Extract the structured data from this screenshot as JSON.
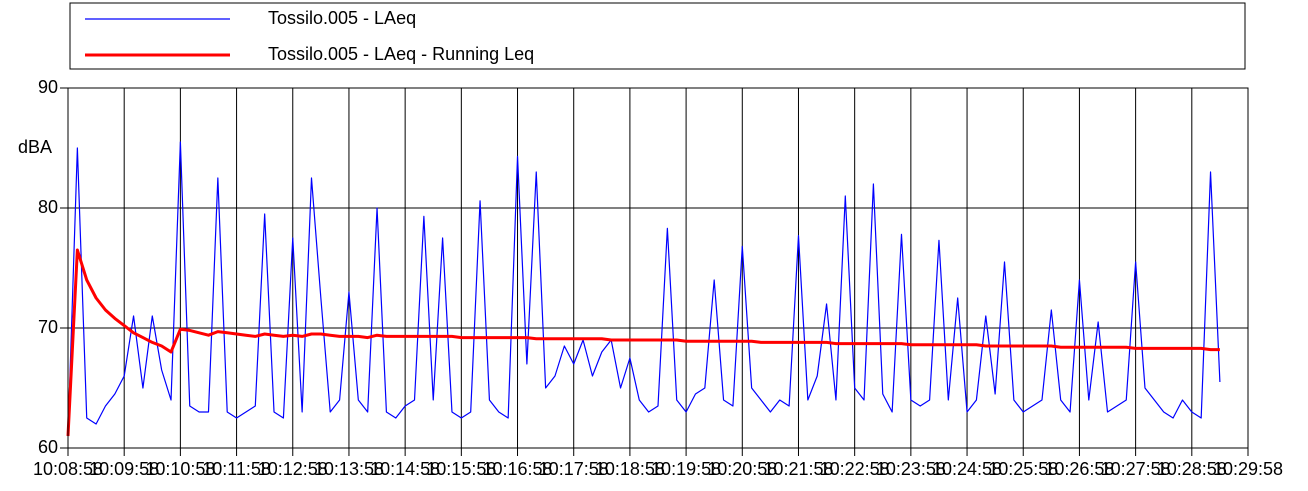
{
  "chart_data": {
    "type": "line",
    "y_label": "dBA",
    "x": [
      "10:08:58",
      "10:09:08",
      "10:09:18",
      "10:09:28",
      "10:09:38",
      "10:09:48",
      "10:09:58",
      "10:10:08",
      "10:10:18",
      "10:10:28",
      "10:10:38",
      "10:10:48",
      "10:10:58",
      "10:11:08",
      "10:11:18",
      "10:11:28",
      "10:11:38",
      "10:11:48",
      "10:11:58",
      "10:12:08",
      "10:12:18",
      "10:12:28",
      "10:12:38",
      "10:12:48",
      "10:12:58",
      "10:13:08",
      "10:13:18",
      "10:13:28",
      "10:13:38",
      "10:13:48",
      "10:13:58",
      "10:14:08",
      "10:14:18",
      "10:14:28",
      "10:14:38",
      "10:14:48",
      "10:14:58",
      "10:15:08",
      "10:15:18",
      "10:15:28",
      "10:15:38",
      "10:15:48",
      "10:15:58",
      "10:16:08",
      "10:16:18",
      "10:16:28",
      "10:16:38",
      "10:16:48",
      "10:16:58",
      "10:17:08",
      "10:17:18",
      "10:17:28",
      "10:17:38",
      "10:17:48",
      "10:17:58",
      "10:18:08",
      "10:18:18",
      "10:18:28",
      "10:18:38",
      "10:18:48",
      "10:18:58",
      "10:19:08",
      "10:19:18",
      "10:19:28",
      "10:19:38",
      "10:19:48",
      "10:19:58",
      "10:20:08",
      "10:20:18",
      "10:20:28",
      "10:20:38",
      "10:20:48",
      "10:20:58",
      "10:21:08",
      "10:21:18",
      "10:21:28",
      "10:21:38",
      "10:21:48",
      "10:21:58",
      "10:22:08",
      "10:22:18",
      "10:22:28",
      "10:22:38",
      "10:22:48",
      "10:22:58",
      "10:23:08",
      "10:23:18",
      "10:23:28",
      "10:23:38",
      "10:23:48",
      "10:23:58",
      "10:24:08",
      "10:24:18",
      "10:24:28",
      "10:24:38",
      "10:24:48",
      "10:24:58",
      "10:25:08",
      "10:25:18",
      "10:25:28",
      "10:25:38",
      "10:25:48",
      "10:25:58",
      "10:26:08",
      "10:26:18",
      "10:26:28",
      "10:26:38",
      "10:26:48",
      "10:26:58",
      "10:27:08",
      "10:27:18",
      "10:27:28",
      "10:27:38",
      "10:27:48",
      "10:27:58",
      "10:28:08",
      "10:28:18",
      "10:28:28",
      "10:28:38",
      "10:28:48",
      "10:28:58",
      "10:29:08",
      "10:29:18",
      "10:29:28"
    ],
    "series": [
      {
        "name": "Tossilo.005 - LAeq",
        "color": "#0000ff",
        "width": 1.2,
        "values": [
          61,
          85,
          62.5,
          62,
          63.5,
          64.5,
          66,
          71,
          65,
          71,
          66.5,
          64,
          85.5,
          63.5,
          63,
          63,
          82.5,
          63,
          62.5,
          63,
          63.5,
          79.5,
          63,
          62.5,
          77.5,
          63,
          82.5,
          72.5,
          63,
          64,
          73,
          64,
          63,
          80,
          63,
          62.5,
          63.5,
          64,
          79.3,
          64,
          77.5,
          63,
          62.5,
          63,
          80.6,
          64,
          63,
          62.5,
          84.3,
          67,
          83,
          65,
          66,
          68.5,
          67,
          69,
          66,
          68,
          69,
          65,
          67.5,
          64,
          63,
          63.5,
          78.3,
          64,
          63,
          64.5,
          65,
          74,
          64,
          63.5,
          76.8,
          65,
          64,
          63,
          64,
          63.5,
          77.7,
          64,
          66,
          72,
          64,
          81,
          65,
          64,
          82,
          64.5,
          63,
          77.8,
          64,
          63.5,
          64,
          77.3,
          64,
          72.5,
          63,
          64,
          71,
          64.5,
          75.5,
          64,
          63,
          63.5,
          64,
          71.5,
          64,
          63,
          74,
          64,
          70.5,
          63,
          63.5,
          64,
          75.5,
          65,
          64,
          63,
          62.5,
          64,
          63,
          62.5,
          83,
          65.5
        ]
      },
      {
        "name": "Tossilo.005 - LAeq - Running Leq",
        "color": "#ff0000",
        "width": 3,
        "values": [
          61,
          76.5,
          74,
          72.5,
          71.5,
          70.8,
          70.2,
          69.6,
          69.2,
          68.8,
          68.5,
          68,
          69.9,
          69.8,
          69.6,
          69.4,
          69.7,
          69.6,
          69.5,
          69.4,
          69.3,
          69.5,
          69.4,
          69.3,
          69.4,
          69.3,
          69.5,
          69.5,
          69.4,
          69.3,
          69.3,
          69.3,
          69.2,
          69.4,
          69.3,
          69.3,
          69.3,
          69.3,
          69.3,
          69.3,
          69.3,
          69.3,
          69.2,
          69.2,
          69.2,
          69.2,
          69.2,
          69.2,
          69.2,
          69.2,
          69.1,
          69.1,
          69.1,
          69.1,
          69.1,
          69.1,
          69.1,
          69.1,
          69,
          69,
          69,
          69,
          69,
          69,
          69,
          69,
          68.9,
          68.9,
          68.9,
          68.9,
          68.9,
          68.9,
          68.9,
          68.9,
          68.8,
          68.8,
          68.8,
          68.8,
          68.8,
          68.8,
          68.8,
          68.8,
          68.7,
          68.7,
          68.7,
          68.7,
          68.7,
          68.7,
          68.7,
          68.7,
          68.6,
          68.6,
          68.6,
          68.6,
          68.6,
          68.6,
          68.6,
          68.6,
          68.5,
          68.5,
          68.5,
          68.5,
          68.5,
          68.5,
          68.5,
          68.5,
          68.4,
          68.4,
          68.4,
          68.4,
          68.4,
          68.4,
          68.4,
          68.4,
          68.3,
          68.3,
          68.3,
          68.3,
          68.3,
          68.3,
          68.3,
          68.3,
          68.2,
          68.2
        ]
      }
    ],
    "xlim": [
      "10:08:58",
      "10:29:58"
    ],
    "xticks": [
      "10:08:58",
      "10:09:58",
      "10:10:58",
      "10:11:58",
      "10:12:58",
      "10:13:58",
      "10:14:58",
      "10:15:58",
      "10:16:58",
      "10:17:58",
      "10:18:58",
      "10:19:58",
      "10:20:58",
      "10:21:58",
      "10:22:58",
      "10:23:58",
      "10:24:58",
      "10:25:58",
      "10:26:58",
      "10:27:58",
      "10:28:58",
      "10:29:58"
    ],
    "ylim": [
      60,
      90
    ],
    "yticks": [
      60,
      70,
      80,
      90
    ],
    "grid": true
  }
}
